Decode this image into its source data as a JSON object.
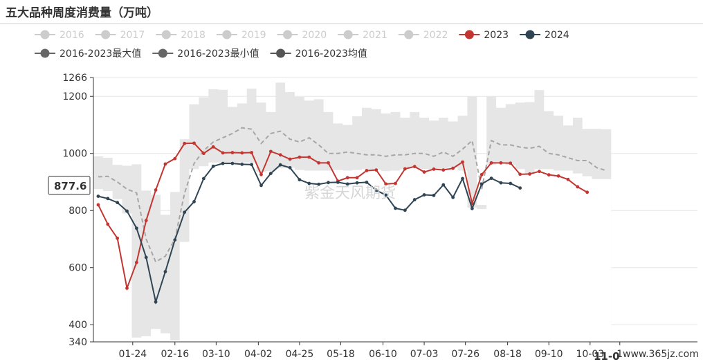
{
  "header": {
    "title": "五大品种周度消费量（万吨）"
  },
  "watermark": "紫金天风期货",
  "site_watermark": "www.365jz.com",
  "cursor": {
    "y_value": 877.6,
    "label": "877.6",
    "x_label": "11-0"
  },
  "chart_data": {
    "type": "line",
    "title": "五大品种周度消费量（万吨）",
    "xlabel": "",
    "ylabel": "",
    "ylim": [
      340,
      1266
    ],
    "yticks": [
      340,
      400,
      600,
      800,
      1000,
      1200,
      1266
    ],
    "x_tick_labels": [
      "01-24",
      "02-16",
      "03-10",
      "04-02",
      "04-25",
      "05-18",
      "06-10",
      "07-03",
      "07-26",
      "08-18",
      "09-10",
      "10-03",
      "1"
    ],
    "x_tick_weeks": [
      4.1,
      8.5,
      12.8,
      17.2,
      21.5,
      25.8,
      30.2,
      34.5,
      38.8,
      43.2,
      47.5,
      51.8,
      54.9
    ],
    "n_weeks": 63,
    "legend_position": "top",
    "series": [
      {
        "name": "2016",
        "color": "#cccccc",
        "hidden": true
      },
      {
        "name": "2017",
        "color": "#cccccc",
        "hidden": true
      },
      {
        "name": "2018",
        "color": "#cccccc",
        "hidden": true
      },
      {
        "name": "2019",
        "color": "#cccccc",
        "hidden": true
      },
      {
        "name": "2020",
        "color": "#cccccc",
        "hidden": true
      },
      {
        "name": "2021",
        "color": "#cccccc",
        "hidden": true
      },
      {
        "name": "2022",
        "color": "#cccccc",
        "hidden": true
      },
      {
        "name": "2023",
        "color": "#c23531",
        "values": [
          820,
          752,
          703,
          528,
          618,
          765,
          872,
          963,
          982,
          1035,
          1036,
          1000,
          1023,
          1002,
          1003,
          1002,
          1003,
          926,
          1007,
          995,
          980,
          987,
          987,
          967,
          967,
          903,
          915,
          915,
          940,
          942,
          893,
          895,
          946,
          954,
          935,
          945,
          942,
          948,
          970,
          825,
          926,
          967,
          967,
          966,
          927,
          928,
          937,
          925,
          921,
          909,
          883,
          864
        ]
      },
      {
        "name": "2024",
        "color": "#2f4554",
        "values": [
          850,
          842,
          828,
          798,
          738,
          636,
          480,
          586,
          697,
          794,
          831,
          912,
          955,
          965,
          965,
          962,
          961,
          888,
          930,
          960,
          950,
          908,
          895,
          892,
          898,
          899,
          893,
          897,
          899,
          871,
          854,
          808,
          801,
          838,
          855,
          853,
          890,
          846,
          912,
          807,
          893,
          913,
          897,
          895,
          879
        ]
      },
      {
        "name": "2016-2023最大值",
        "color": "#666666",
        "fill": "#e6e6e6",
        "values": [
          990,
          985,
          960,
          957,
          962,
          870,
          855,
          785,
          865,
          1050,
          1172,
          1197,
          1225,
          1223,
          1163,
          1175,
          1227,
          1178,
          1145,
          1248,
          1215,
          1198,
          1185,
          1190,
          1145,
          1105,
          1100,
          1130,
          1160,
          1155,
          1140,
          1145,
          1125,
          1145,
          1125,
          1115,
          1125,
          1112,
          1132,
          1200,
          820,
          1200,
          1160,
          1173,
          1178,
          1180,
          1222,
          1148,
          1132,
          1098,
          1125,
          1086,
          1086,
          1085
        ]
      },
      {
        "name": "2016-2023最小值",
        "color": "#666666",
        "fill": "#ffffff",
        "values": [
          875,
          868,
          840,
          790,
          355,
          360,
          385,
          370,
          345,
          690,
          945,
          955,
          968,
          968,
          968,
          968,
          968,
          935,
          938,
          948,
          950,
          942,
          940,
          940,
          940,
          942,
          940,
          942,
          945,
          943,
          938,
          940,
          945,
          950,
          945,
          945,
          945,
          950,
          940,
          810,
          805,
          960,
          970,
          960,
          945,
          930,
          945,
          945,
          940,
          940,
          930,
          920,
          910,
          910
        ]
      },
      {
        "name": "2016-2023均值",
        "color": "#555555",
        "values": [
          918,
          920,
          900,
          875,
          862,
          700,
          620,
          640,
          700,
          860,
          965,
          1010,
          1040,
          1055,
          1070,
          1090,
          1085,
          1035,
          1070,
          1078,
          1050,
          1040,
          1055,
          1030,
          1000,
          1000,
          1005,
          1000,
          995,
          995,
          990,
          995,
          995,
          1000,
          1000,
          990,
          1005,
          990,
          1015,
          1045,
          875,
          1045,
          1030,
          1030,
          1022,
          1018,
          1025,
          1000,
          995,
          985,
          975,
          975,
          950,
          940
        ]
      }
    ]
  }
}
